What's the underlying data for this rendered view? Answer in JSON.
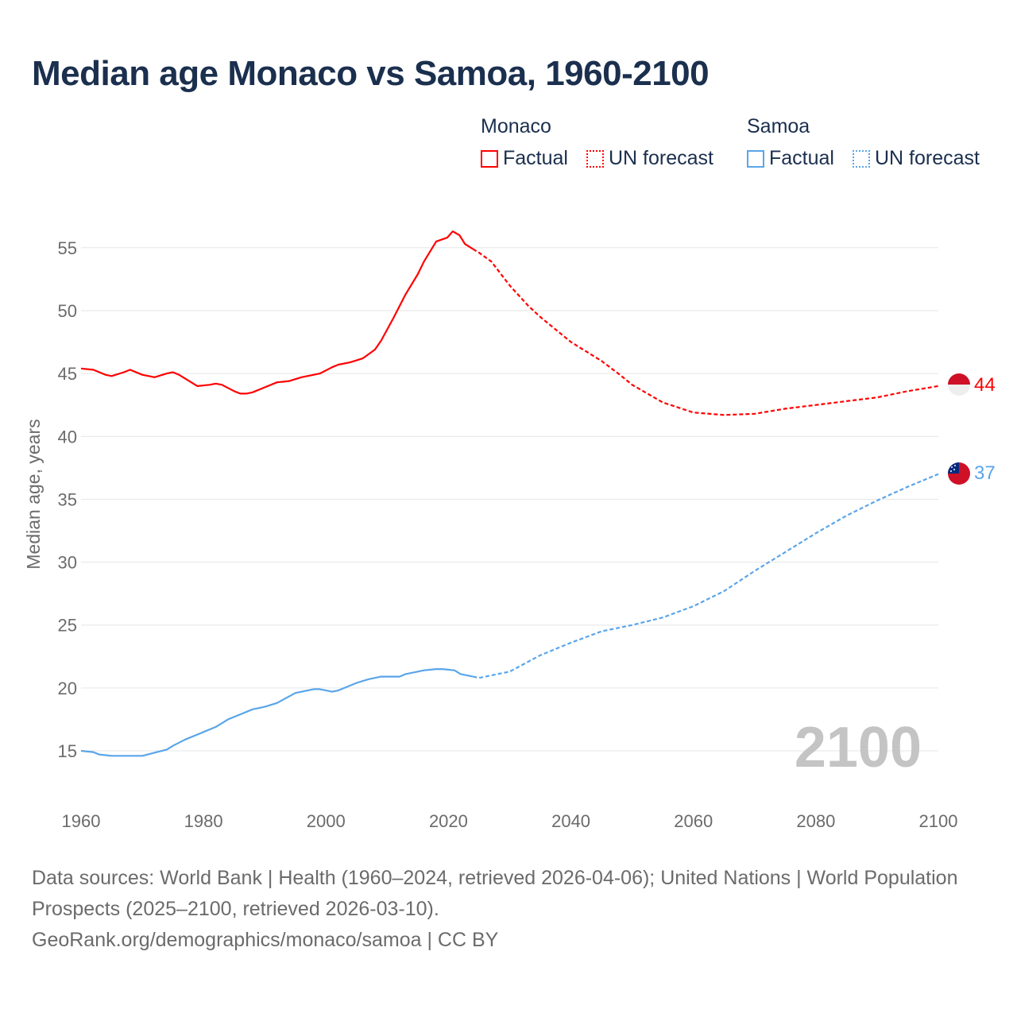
{
  "chart_data": {
    "type": "line",
    "title": "Median age Monaco vs Samoa, 1960-2100",
    "xlabel": "",
    "ylabel": "Median age, years",
    "xlim": [
      1960,
      2100
    ],
    "ylim": [
      12,
      59
    ],
    "xticks": [
      1960,
      1980,
      2000,
      2020,
      2040,
      2060,
      2080,
      2100
    ],
    "yticks": [
      15,
      20,
      25,
      30,
      35,
      40,
      45,
      50,
      55
    ],
    "grid": true,
    "legend_position": "top-right",
    "year_watermark": "2100",
    "series": [
      {
        "name": "Monaco",
        "color": "#ff0000",
        "end_label": "44",
        "flag": "monaco-flag",
        "factual_label": "Factual",
        "forecast_label": "UN forecast",
        "factual": [
          [
            1960,
            45.4
          ],
          [
            1962,
            45.3
          ],
          [
            1964,
            44.9
          ],
          [
            1965,
            44.8
          ],
          [
            1967,
            45.1
          ],
          [
            1968,
            45.3
          ],
          [
            1970,
            44.9
          ],
          [
            1972,
            44.7
          ],
          [
            1974,
            45.0
          ],
          [
            1975,
            45.1
          ],
          [
            1976,
            44.9
          ],
          [
            1978,
            44.3
          ],
          [
            1979,
            44.0
          ],
          [
            1981,
            44.1
          ],
          [
            1982,
            44.2
          ],
          [
            1983,
            44.1
          ],
          [
            1985,
            43.6
          ],
          [
            1986,
            43.4
          ],
          [
            1987,
            43.4
          ],
          [
            1988,
            43.5
          ],
          [
            1990,
            43.9
          ],
          [
            1992,
            44.3
          ],
          [
            1994,
            44.4
          ],
          [
            1996,
            44.7
          ],
          [
            1998,
            44.9
          ],
          [
            1999,
            45.0
          ],
          [
            2001,
            45.5
          ],
          [
            2002,
            45.7
          ],
          [
            2004,
            45.9
          ],
          [
            2006,
            46.2
          ],
          [
            2008,
            46.9
          ],
          [
            2009,
            47.6
          ],
          [
            2011,
            49.4
          ],
          [
            2013,
            51.3
          ],
          [
            2015,
            52.9
          ],
          [
            2016,
            53.9
          ],
          [
            2017.5,
            55.1
          ],
          [
            2018,
            55.5
          ],
          [
            2019.8,
            55.8
          ],
          [
            2020.7,
            56.3
          ],
          [
            2021.8,
            56.0
          ],
          [
            2022.7,
            55.3
          ],
          [
            2024,
            54.9
          ]
        ],
        "forecast": [
          [
            2024,
            54.9
          ],
          [
            2025,
            54.6
          ],
          [
            2027,
            53.9
          ],
          [
            2030,
            52.0
          ],
          [
            2033,
            50.4
          ],
          [
            2035,
            49.5
          ],
          [
            2040,
            47.5
          ],
          [
            2045,
            46.0
          ],
          [
            2048,
            44.9
          ],
          [
            2050,
            44.1
          ],
          [
            2055,
            42.7
          ],
          [
            2060,
            41.9
          ],
          [
            2065,
            41.7
          ],
          [
            2070,
            41.8
          ],
          [
            2075,
            42.2
          ],
          [
            2080,
            42.5
          ],
          [
            2085,
            42.8
          ],
          [
            2090,
            43.1
          ],
          [
            2095,
            43.6
          ],
          [
            2100,
            44.0
          ]
        ]
      },
      {
        "name": "Samoa",
        "color": "#5aa5ea",
        "end_label": "37",
        "flag": "samoa-flag",
        "factual_label": "Factual",
        "forecast_label": "UN forecast",
        "factual": [
          [
            1960,
            15.0
          ],
          [
            1962,
            14.9
          ],
          [
            1963,
            14.7
          ],
          [
            1965,
            14.6
          ],
          [
            1970,
            14.6
          ],
          [
            1974,
            15.1
          ],
          [
            1975,
            15.4
          ],
          [
            1977,
            15.9
          ],
          [
            1980,
            16.5
          ],
          [
            1982,
            16.9
          ],
          [
            1984,
            17.5
          ],
          [
            1986,
            17.9
          ],
          [
            1988,
            18.3
          ],
          [
            1990,
            18.5
          ],
          [
            1992,
            18.8
          ],
          [
            1995,
            19.6
          ],
          [
            1998,
            19.9
          ],
          [
            1999,
            19.9
          ],
          [
            2001,
            19.7
          ],
          [
            2002,
            19.8
          ],
          [
            2005,
            20.4
          ],
          [
            2007,
            20.7
          ],
          [
            2009,
            20.9
          ],
          [
            2012,
            20.9
          ],
          [
            2013,
            21.1
          ],
          [
            2016,
            21.4
          ],
          [
            2018,
            21.5
          ],
          [
            2019,
            21.5
          ],
          [
            2021,
            21.4
          ],
          [
            2022,
            21.1
          ],
          [
            2024,
            20.9
          ]
        ],
        "forecast": [
          [
            2024,
            20.9
          ],
          [
            2025,
            20.8
          ],
          [
            2030,
            21.3
          ],
          [
            2035,
            22.6
          ],
          [
            2040,
            23.6
          ],
          [
            2045,
            24.5
          ],
          [
            2050,
            25.0
          ],
          [
            2055,
            25.6
          ],
          [
            2060,
            26.5
          ],
          [
            2065,
            27.7
          ],
          [
            2070,
            29.3
          ],
          [
            2075,
            30.8
          ],
          [
            2080,
            32.3
          ],
          [
            2085,
            33.7
          ],
          [
            2090,
            34.9
          ],
          [
            2095,
            36.0
          ],
          [
            2100,
            37.0
          ]
        ]
      }
    ]
  },
  "footer": {
    "sources": "Data sources: World Bank | Health (1960–2024, retrieved 2026-04-06); United Nations | World Population Prospects (2025–2100, retrieved 2026-03-10).",
    "link": "GeoRank.org/demographics/monaco/samoa | CC BY"
  }
}
